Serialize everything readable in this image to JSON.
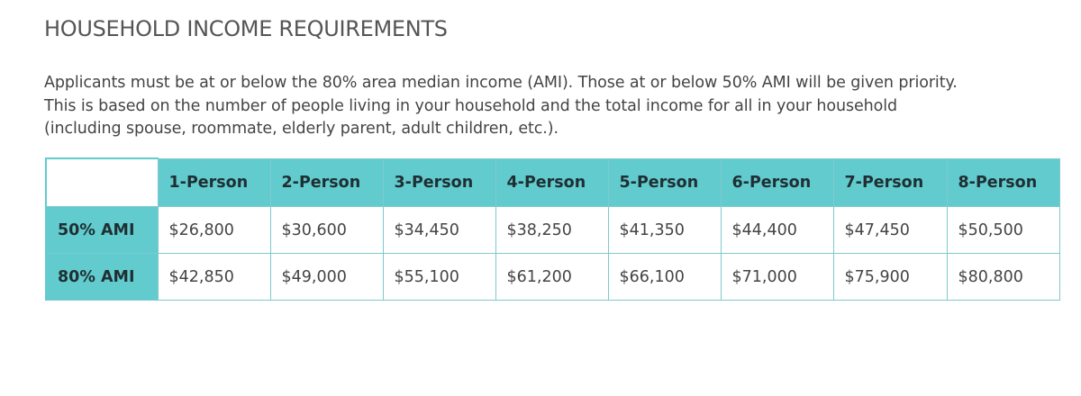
{
  "heading": "HOUSEHOLD INCOME REQUIREMENTS",
  "intro_lines": [
    "Applicants must be at or below the 80% area median income (AMI). Those at or below 50% AMI will be given priority.",
    "This is based on the number of people living in your household and the total income for all in your household",
    "(including spouse, roommate, elderly parent, adult children, etc.)."
  ],
  "table": {
    "columns": [
      "1-Person",
      "2-Person",
      "3-Person",
      "4-Person",
      "5-Person",
      "6-Person",
      "7-Person",
      "8-Person"
    ],
    "rows": [
      {
        "label": "50% AMI",
        "values": [
          "$26,800",
          "$30,600",
          "$34,450",
          "$38,250",
          "$41,350",
          "$44,400",
          "$47,450",
          "$50,500"
        ]
      },
      {
        "label": "80% AMI",
        "values": [
          "$42,850",
          "$49,000",
          "$55,100",
          "$61,200",
          "$66,100",
          "$71,000",
          "$75,900",
          "$80,800"
        ]
      }
    ]
  },
  "colors": {
    "header_background": "#62cbce",
    "border": "#7fc9cf",
    "heading_text": "#555555",
    "body_text": "#444444"
  }
}
